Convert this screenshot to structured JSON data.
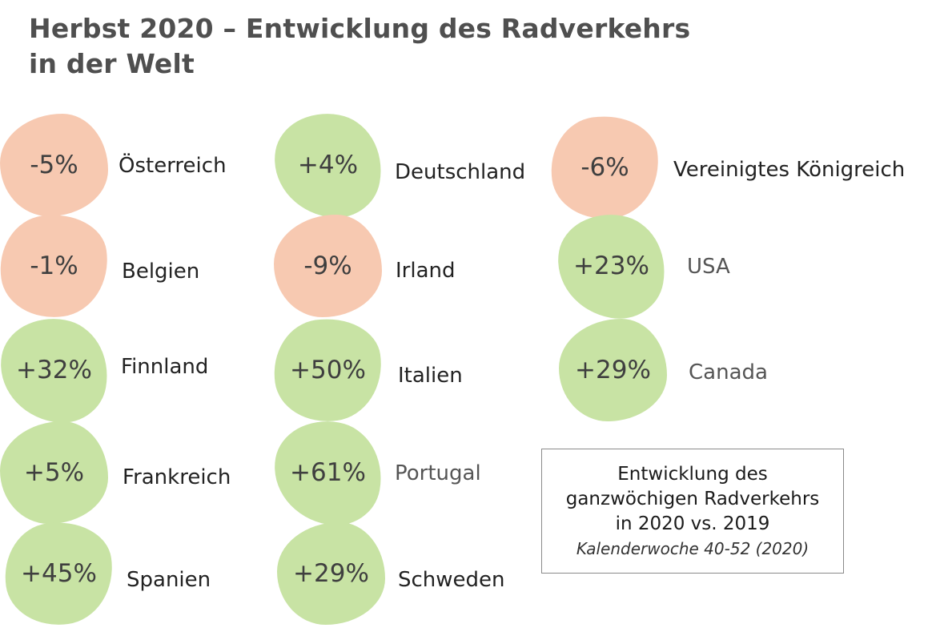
{
  "chart_data": {
    "type": "table",
    "title_lines": [
      "Herbst 2020 – Entwicklung des Radverkehrs",
      "in der Welt"
    ],
    "colors": {
      "negative": "#f7c9b1",
      "positive": "#c8e3a4"
    },
    "entries": [
      {
        "country": "Österreich",
        "label": "-5%",
        "value": -5
      },
      {
        "country": "Belgien",
        "label": "-1%",
        "value": -1
      },
      {
        "country": "Finnland",
        "label": "+32%",
        "value": 32
      },
      {
        "country": "Frankreich",
        "label": "+5%",
        "value": 5
      },
      {
        "country": "Spanien",
        "label": "+45%",
        "value": 45
      },
      {
        "country": "Deutschland",
        "label": "+4%",
        "value": 4
      },
      {
        "country": "Irland",
        "label": "-9%",
        "value": -9
      },
      {
        "country": "Italien",
        "label": "+50%",
        "value": 50
      },
      {
        "country": "Portugal",
        "label": "+61%",
        "value": 61
      },
      {
        "country": "Schweden",
        "label": "+29%",
        "value": 29
      },
      {
        "country": "Vereinigtes Königreich",
        "label": "-6%",
        "value": -6
      },
      {
        "country": "USA",
        "label": "+23%",
        "value": 23
      },
      {
        "country": "Canada",
        "label": "+29%",
        "value": 29
      }
    ],
    "legend": {
      "lines": [
        "Entwicklung des",
        "ganzwöchigen Radverkehrs",
        "in 2020 vs. 2019"
      ],
      "subtitle": "Kalenderwoche 40-52 (2020)"
    }
  }
}
